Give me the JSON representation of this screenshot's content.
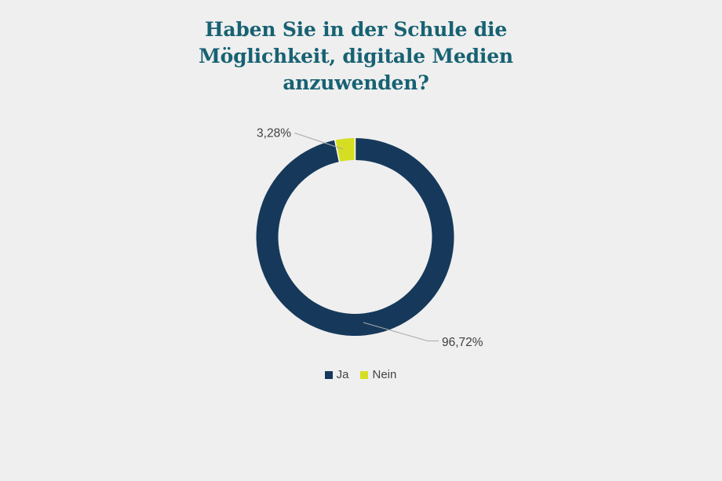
{
  "background_color": "#efefef",
  "title": {
    "lines": [
      "Haben Sie in der Schule die",
      "Möglichkeit, digitale Medien",
      "anzuwenden?"
    ],
    "color": "#176273"
  },
  "chart_data": {
    "type": "pie",
    "subtype": "donut",
    "categories": [
      "Ja",
      "Nein"
    ],
    "values": [
      96.72,
      3.28
    ],
    "display_labels": [
      "96,72%",
      "3,28%"
    ],
    "colors": [
      "#16395b",
      "#d6de23"
    ],
    "start_angle_deg": 0,
    "direction": "clockwise",
    "legend_position": "bottom",
    "label_color": "#404040",
    "leader_line_color": "#a8a8a8",
    "separator_color": "#ffffff"
  }
}
